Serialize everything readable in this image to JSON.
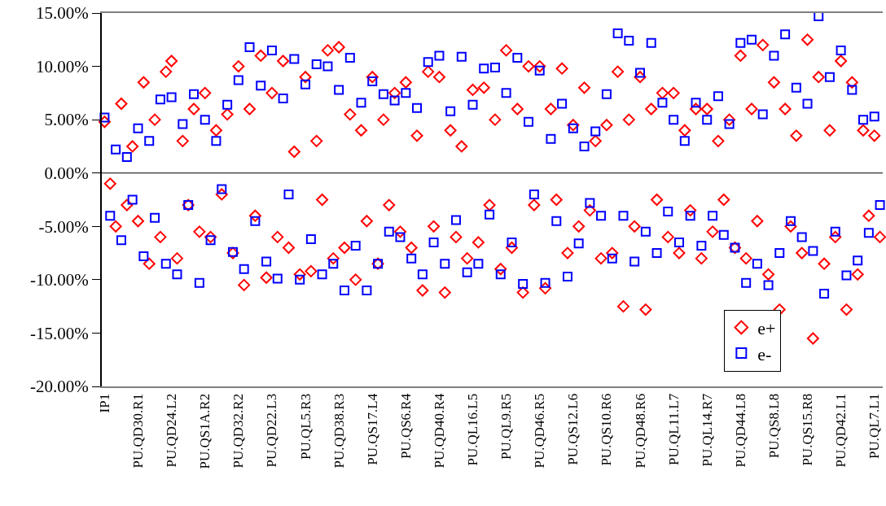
{
  "chart_data": {
    "type": "scatter",
    "categories": [
      "IP1",
      null,
      null,
      null,
      null,
      null,
      "PU.QD30.R1",
      null,
      null,
      null,
      null,
      null,
      "PU.QD24.L2",
      null,
      null,
      null,
      null,
      null,
      "PU.QS1A.R2",
      null,
      null,
      null,
      null,
      null,
      "PU.QD32.R2",
      null,
      null,
      null,
      null,
      null,
      "PU.QD22.L3",
      null,
      null,
      null,
      null,
      null,
      "PU.QL5.R3",
      null,
      null,
      null,
      null,
      null,
      "PU.QD38.R3",
      null,
      null,
      null,
      null,
      null,
      "PU.QS17.L4",
      null,
      null,
      null,
      null,
      null,
      "PU.QS6.R4",
      null,
      null,
      null,
      null,
      null,
      "PU.QD40.R4",
      null,
      null,
      null,
      null,
      null,
      "PU.QL16.L5",
      null,
      null,
      null,
      null,
      null,
      "PU.QL9.R5",
      null,
      null,
      null,
      null,
      null,
      "PU.QD46.R5",
      null,
      null,
      null,
      null,
      null,
      "PU.QS12.L6",
      null,
      null,
      null,
      null,
      null,
      "PU.QS10.R6",
      null,
      null,
      null,
      null,
      null,
      "PU.QD48.R6",
      null,
      null,
      null,
      null,
      null,
      "PU.QL11.L7",
      null,
      null,
      null,
      null,
      null,
      "PU.QL14.R7",
      null,
      null,
      null,
      null,
      null,
      "PU.QD44.L8",
      null,
      null,
      null,
      null,
      null,
      "PU.QS8.L8",
      null,
      null,
      null,
      null,
      null,
      "PU.QS15.R8",
      null,
      null,
      null,
      null,
      null,
      "PU.QD42.L1",
      null,
      null,
      null,
      null,
      null,
      "PU.QL7.L1",
      null
    ],
    "series": [
      {
        "name": "e+",
        "color": "#ff0000",
        "marker": "diamond",
        "values": [
          4.8,
          -1,
          -5,
          6.5,
          -3,
          2.5,
          -4.5,
          8.5,
          -8.5,
          5,
          -6,
          9.5,
          10.5,
          -8,
          3,
          -3,
          6,
          -5.5,
          7.5,
          -6,
          4,
          -2,
          5.5,
          -7.5,
          10,
          -10.5,
          6,
          -4,
          11,
          -9.8,
          7.5,
          -6,
          10.5,
          -7,
          2,
          -9.5,
          9,
          -9.2,
          3,
          -2.5,
          11.5,
          -8,
          11.8,
          -7,
          5.5,
          -10,
          4,
          -4.5,
          9,
          -8.5,
          5,
          -3,
          7.5,
          -5.5,
          8.5,
          -7,
          3.5,
          -11,
          9.5,
          -5,
          9,
          -11.2,
          4,
          -6,
          2.5,
          -8,
          7.8,
          -6.5,
          8,
          -3,
          5,
          -9,
          11.5,
          -7,
          6,
          -11.2,
          10,
          -3,
          10,
          -10.8,
          6,
          -2.5,
          9.8,
          -7.5,
          4.5,
          -5,
          8,
          -3.5,
          3,
          -8,
          4.5,
          -7.5,
          9.5,
          -12.5,
          5,
          -5,
          9,
          -12.8,
          6,
          -2.5,
          7.5,
          -6,
          7.5,
          -7.5,
          4,
          -3.5,
          6,
          -8,
          6,
          -5.5,
          3,
          -2.5,
          5,
          -7,
          11,
          -8,
          6,
          -4.5,
          12,
          -9.5,
          8.5,
          -12.8,
          6,
          -5,
          3.5,
          -7.5,
          12.5,
          -15.5,
          9,
          -8.5,
          4,
          -6,
          10.5,
          -12.8,
          8.5,
          -9.5,
          4,
          -4,
          3.5,
          -6
        ]
      },
      {
        "name": "e-",
        "color": "#0000ff",
        "marker": "square",
        "values": [
          5.2,
          -4,
          2.2,
          -6.3,
          1.5,
          -2.5,
          4.2,
          -7.8,
          3,
          -4.2,
          6.9,
          -8.5,
          7.1,
          -9.5,
          4.6,
          -3,
          7.4,
          -10.3,
          5,
          -6.3,
          3,
          -1.5,
          6.4,
          -7.4,
          8.7,
          -9,
          11.8,
          -4.5,
          8.2,
          -8.3,
          11.5,
          -9.9,
          7,
          -2,
          10.7,
          -10,
          8.3,
          -6.2,
          10.2,
          -9.5,
          10,
          -8.5,
          7.8,
          -11,
          10.8,
          -6.8,
          6.6,
          -11,
          8.6,
          -8.5,
          7.4,
          -5.5,
          6.8,
          -6,
          7.5,
          -8,
          6.1,
          -9.5,
          10.4,
          -6.5,
          11,
          -8.5,
          5.8,
          -4.4,
          10.9,
          -9.3,
          6.4,
          -8.5,
          9.8,
          -3.9,
          9.9,
          -9.5,
          7.5,
          -6.5,
          10.8,
          -10.4,
          4.8,
          -2,
          9.6,
          -10.3,
          3.2,
          -4.5,
          6.5,
          -9.7,
          4.2,
          -6.6,
          2.5,
          -2.8,
          3.9,
          -4,
          7.4,
          -8,
          13.1,
          -4,
          12.4,
          -8.3,
          9.4,
          -5.5,
          12.2,
          -7.5,
          6.6,
          -3.6,
          5,
          -6.5,
          3,
          -4,
          6.6,
          -6.8,
          5,
          -4,
          7.2,
          -5.8,
          4.6,
          -7,
          12.2,
          -10.3,
          12.5,
          -8.5,
          5.5,
          -10.5,
          11,
          -7.5,
          13,
          -4.5,
          8,
          -6,
          6.5,
          -7.3,
          14.7,
          -11.3,
          9,
          -5.5,
          11.5,
          -9.6,
          7.8,
          -8.2,
          5,
          -5.6,
          5.3,
          -3
        ]
      }
    ],
    "ylim": [
      -20,
      15
    ],
    "yticks": [
      {
        "value": -20,
        "label": "-20.00%"
      },
      {
        "value": -15,
        "label": "-15.00%"
      },
      {
        "value": -10,
        "label": "-10.00%"
      },
      {
        "value": -5,
        "label": "-5.00%"
      },
      {
        "value": 0,
        "label": "0.00%"
      },
      {
        "value": 5,
        "label": "5.00%"
      },
      {
        "value": 10,
        "label": "10.00%"
      },
      {
        "value": 15,
        "label": "15.00%"
      }
    ],
    "ref_lines": [
      {
        "axis": "y",
        "value": 0,
        "color": "#000000"
      }
    ],
    "grid": false,
    "legend": "bottom right"
  }
}
